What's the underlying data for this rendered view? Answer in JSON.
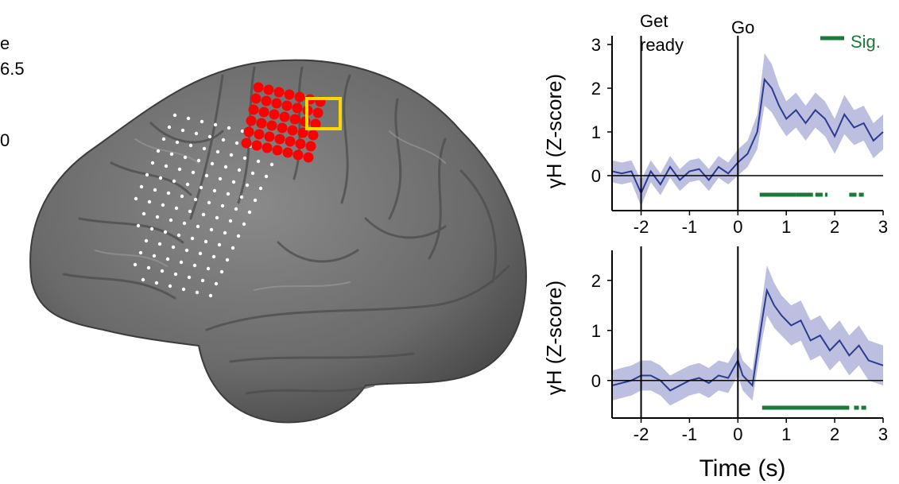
{
  "left_edge": {
    "line1": "e",
    "line2": "6.5",
    "line3": "0"
  },
  "brain": {
    "colors": {
      "cortex": "#6f6f6f",
      "active": "#ff0000",
      "highlight": "#ffd700",
      "inactive": "#ffffff"
    }
  },
  "chart_data": [
    {
      "type": "line",
      "title": "",
      "xlabel": "",
      "ylabel": "γH (Z-score)",
      "xlim": [
        -2.6,
        3.0
      ],
      "ylim": [
        -0.8,
        3.2
      ],
      "xticks": [
        "-2",
        "-1",
        "0",
        "1",
        "2",
        "3"
      ],
      "yticks": [
        "0",
        "1",
        "2",
        "3"
      ],
      "events": [
        {
          "x": -2.0,
          "label": "Get ready"
        },
        {
          "x": 0.0,
          "label": "Go"
        }
      ],
      "legend": {
        "label": "Sig.",
        "position": "top-right",
        "color": "#1a7a3a"
      },
      "series": [
        {
          "color": "#2b3c8f",
          "band_color": "#a7a9d6",
          "x": [
            -2.6,
            -2.4,
            -2.2,
            -2.0,
            -1.8,
            -1.6,
            -1.4,
            -1.2,
            -1.0,
            -0.8,
            -0.6,
            -0.4,
            -0.2,
            0.0,
            0.2,
            0.4,
            0.55,
            0.7,
            0.85,
            1.0,
            1.2,
            1.4,
            1.6,
            1.8,
            2.0,
            2.2,
            2.4,
            2.6,
            2.8,
            3.0
          ],
          "y": [
            0.1,
            0.05,
            0.1,
            -0.4,
            0.1,
            -0.2,
            0.2,
            -0.1,
            0.1,
            0.15,
            -0.1,
            0.2,
            0.05,
            0.3,
            0.5,
            1.0,
            2.2,
            2.0,
            1.6,
            1.3,
            1.5,
            1.2,
            1.5,
            1.3,
            0.9,
            1.4,
            1.1,
            1.2,
            0.8,
            1.0
          ],
          "band_halfwidth": [
            0.25,
            0.25,
            0.25,
            0.3,
            0.25,
            0.25,
            0.25,
            0.25,
            0.25,
            0.25,
            0.25,
            0.25,
            0.25,
            0.3,
            0.3,
            0.4,
            0.6,
            0.55,
            0.45,
            0.4,
            0.4,
            0.4,
            0.4,
            0.4,
            0.4,
            0.45,
            0.4,
            0.4,
            0.4,
            0.4
          ]
        }
      ],
      "sig_intervals": [
        [
          0.45,
          1.2
        ],
        [
          1.2,
          1.55
        ],
        [
          1.6,
          1.75
        ],
        [
          1.8,
          1.85
        ],
        [
          2.3,
          2.45
        ],
        [
          2.5,
          2.6
        ]
      ]
    },
    {
      "type": "line",
      "title": "",
      "xlabel": "Time (s)",
      "ylabel": "γH (Z-score)",
      "xlim": [
        -2.6,
        3.0
      ],
      "ylim": [
        -0.75,
        2.6
      ],
      "xticks": [
        "-2",
        "-1",
        "0",
        "1",
        "2",
        "3"
      ],
      "yticks": [
        "0",
        "1",
        "2"
      ],
      "events": [
        {
          "x": -2.0,
          "label": ""
        },
        {
          "x": 0.0,
          "label": ""
        }
      ],
      "series": [
        {
          "color": "#2b3c8f",
          "band_color": "#a7a9d6",
          "x": [
            -2.6,
            -2.4,
            -2.2,
            -2.0,
            -1.8,
            -1.6,
            -1.4,
            -1.2,
            -1.0,
            -0.8,
            -0.6,
            -0.4,
            -0.2,
            0.0,
            0.1,
            0.3,
            0.5,
            0.6,
            0.75,
            0.9,
            1.1,
            1.3,
            1.5,
            1.7,
            1.9,
            2.1,
            2.3,
            2.5,
            2.7,
            3.0
          ],
          "y": [
            -0.1,
            -0.05,
            0.0,
            0.1,
            0.1,
            0.0,
            -0.2,
            -0.1,
            0.0,
            0.05,
            -0.05,
            0.1,
            0.05,
            0.4,
            0.1,
            -0.1,
            1.2,
            1.8,
            1.5,
            1.3,
            1.1,
            1.2,
            0.8,
            0.9,
            0.6,
            0.8,
            0.5,
            0.7,
            0.4,
            0.3
          ],
          "band_halfwidth": [
            0.3,
            0.3,
            0.3,
            0.3,
            0.3,
            0.3,
            0.3,
            0.3,
            0.3,
            0.3,
            0.3,
            0.3,
            0.3,
            0.3,
            0.3,
            0.3,
            0.4,
            0.5,
            0.45,
            0.4,
            0.4,
            0.4,
            0.4,
            0.4,
            0.4,
            0.4,
            0.4,
            0.4,
            0.4,
            0.4
          ]
        }
      ],
      "sig_intervals": [
        [
          0.5,
          2.3
        ],
        [
          2.4,
          2.5
        ],
        [
          2.55,
          2.65
        ]
      ]
    }
  ]
}
